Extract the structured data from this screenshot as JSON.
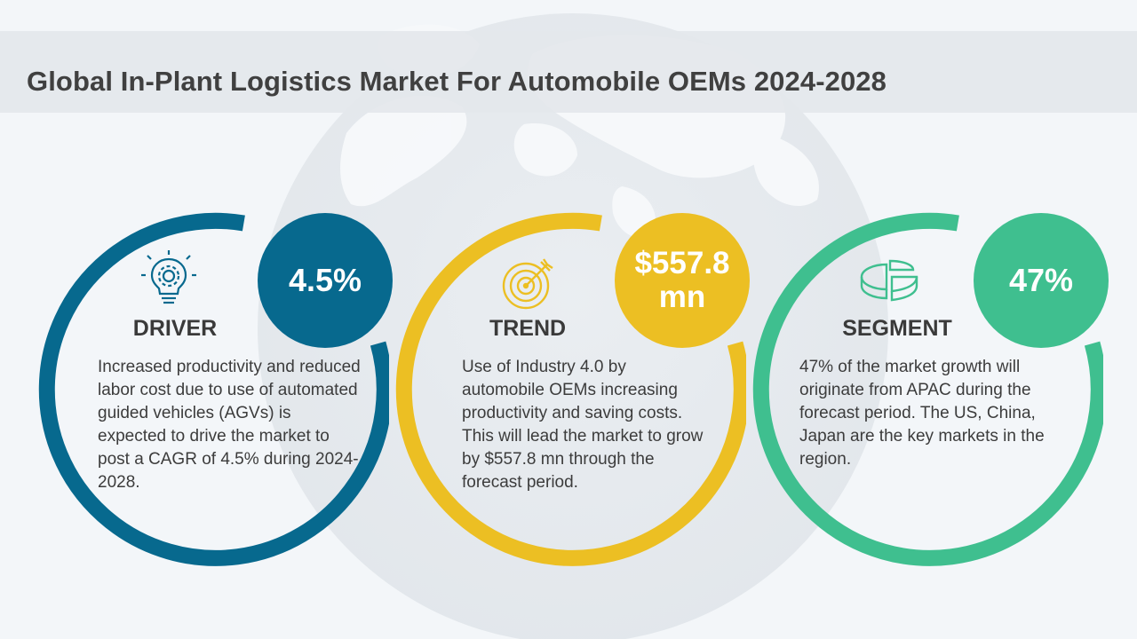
{
  "title": "Global In-Plant Logistics Market For Automobile OEMs 2024-2028",
  "colors": {
    "driver": "#07698e",
    "trend": "#ecbf23",
    "segment": "#3fbf8f",
    "title_band": "#e4e7eb",
    "text": "#3c3c3c"
  },
  "cards": [
    {
      "label": "DRIVER",
      "value": "4.5%",
      "icon": "lightbulb-gear-icon",
      "description": "Increased productivity and reduced labor cost due to use of automated guided vehicles (AGVs) is expected to drive the market to post a CAGR of 4.5% during 2024-2028."
    },
    {
      "label": "TREND",
      "value": "$557.8 mn",
      "icon": "target-arrow-icon",
      "description": "Use of Industry 4.0 by automobile OEMs increasing productivity and saving costs. This will lead the market to grow by $557.8 mn through the forecast period."
    },
    {
      "label": "SEGMENT",
      "value": "47%",
      "icon": "pie-chart-icon",
      "description": "47% of the market growth will originate from APAC during the forecast period. The US, China, Japan are the key markets in the region."
    }
  ]
}
